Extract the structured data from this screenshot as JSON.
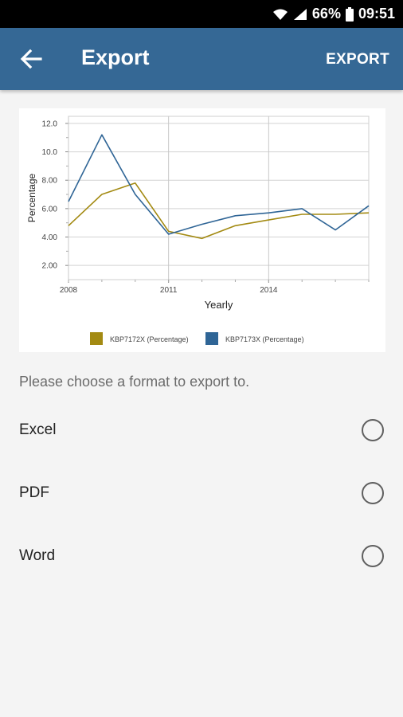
{
  "status_bar": {
    "battery": "66%",
    "time": "09:51"
  },
  "app_bar": {
    "title": "Export",
    "action_label": "EXPORT"
  },
  "prompt": "Please choose a format to export to.",
  "formats": [
    {
      "label": "Excel",
      "selected": false
    },
    {
      "label": "PDF",
      "selected": false
    },
    {
      "label": "Word",
      "selected": false
    }
  ],
  "colors": {
    "app_bar": "#356895",
    "series1": "#a38a12",
    "series2": "#2f6596"
  },
  "chart_data": {
    "type": "line",
    "xlabel": "Yearly",
    "ylabel": "Percentage",
    "x_ticks": [
      "2008",
      "2011",
      "2014"
    ],
    "y_ticks": [
      "2.00",
      "4.00",
      "6.00",
      "8.00",
      "10.0",
      "12.0"
    ],
    "xlim": [
      2008,
      2017
    ],
    "ylim": [
      1,
      12.5
    ],
    "grid": true,
    "legend_position": "bottom",
    "x": [
      2008,
      2009,
      2010,
      2011,
      2012,
      2013,
      2014,
      2015,
      2016,
      2017
    ],
    "series": [
      {
        "name": "KBP7172X (Percentage)",
        "values": [
          4.8,
          7.0,
          7.8,
          4.4,
          3.9,
          4.8,
          5.2,
          5.6,
          5.6,
          5.7
        ]
      },
      {
        "name": "KBP7173X (Percentage)",
        "values": [
          6.5,
          11.2,
          7.0,
          4.2,
          4.9,
          5.5,
          5.7,
          6.0,
          4.5,
          6.2
        ]
      }
    ]
  }
}
